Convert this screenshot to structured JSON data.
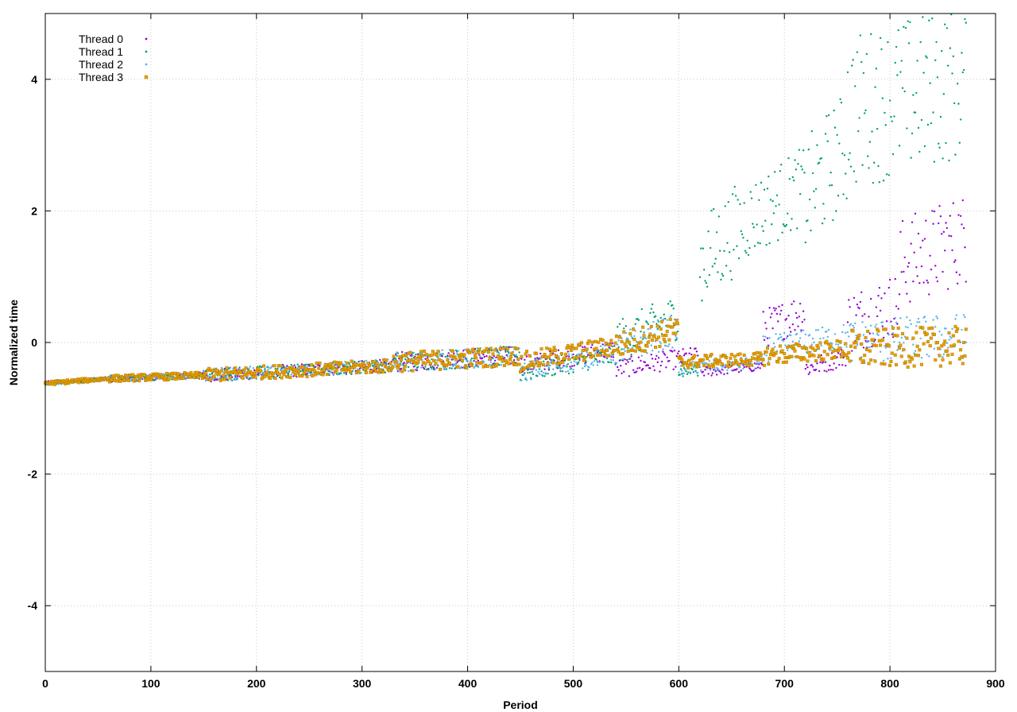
{
  "chart_data": {
    "type": "scatter",
    "title": "",
    "xlabel": "Period",
    "ylabel": "Normalized time",
    "xlim": [
      0,
      900
    ],
    "ylim": [
      -5,
      5
    ],
    "xticks": [
      0,
      100,
      200,
      300,
      400,
      500,
      600,
      700,
      800,
      900
    ],
    "yticks": [
      -4,
      -2,
      0,
      2,
      4
    ],
    "grid": true,
    "legend_position": "top-left",
    "n_points": 873,
    "series": [
      {
        "name": "Thread 0",
        "color": "#9400d3",
        "marker": "dot",
        "segments": [
          {
            "x": [
              0,
              60
            ],
            "y": [
              -0.62,
              -0.55
            ],
            "spread": 0.03
          },
          {
            "x": [
              60,
              150
            ],
            "y": [
              -0.55,
              -0.5
            ],
            "spread": 0.05
          },
          {
            "x": [
              150,
              330
            ],
            "y": [
              -0.5,
              -0.35
            ],
            "spread": 0.1
          },
          {
            "x": [
              330,
              450
            ],
            "y": [
              -0.3,
              -0.2
            ],
            "spread": 0.15
          },
          {
            "x": [
              450,
              540
            ],
            "y": [
              -0.35,
              -0.1
            ],
            "spread": 0.15
          },
          {
            "x": [
              540,
              620
            ],
            "y": [
              -0.4,
              -0.2
            ],
            "spread": 0.15
          },
          {
            "x": [
              620,
              680
            ],
            "y": [
              -0.45,
              -0.35
            ],
            "spread": 0.08
          },
          {
            "x": [
              680,
              720
            ],
            "y": [
              0.2,
              0.5
            ],
            "spread": 0.3
          },
          {
            "x": [
              720,
              760
            ],
            "y": [
              -0.4,
              -0.2
            ],
            "spread": 0.15
          },
          {
            "x": [
              760,
              810
            ],
            "y": [
              0.3,
              0.6
            ],
            "spread": 0.5
          },
          {
            "x": [
              810,
              873
            ],
            "y": [
              1.2,
              1.6
            ],
            "spread": 0.7
          }
        ]
      },
      {
        "name": "Thread 1",
        "color": "#009e73",
        "marker": "dot",
        "segments": [
          {
            "x": [
              0,
              60
            ],
            "y": [
              -0.62,
              -0.55
            ],
            "spread": 0.03
          },
          {
            "x": [
              60,
              150
            ],
            "y": [
              -0.55,
              -0.5
            ],
            "spread": 0.05
          },
          {
            "x": [
              150,
              330
            ],
            "y": [
              -0.5,
              -0.35
            ],
            "spread": 0.1
          },
          {
            "x": [
              330,
              450
            ],
            "y": [
              -0.3,
              -0.2
            ],
            "spread": 0.15
          },
          {
            "x": [
              450,
              540
            ],
            "y": [
              -0.45,
              -0.2
            ],
            "spread": 0.15
          },
          {
            "x": [
              540,
              600
            ],
            "y": [
              0.0,
              0.4
            ],
            "spread": 0.35
          },
          {
            "x": [
              600,
              620
            ],
            "y": [
              -0.45,
              -0.4
            ],
            "spread": 0.1
          },
          {
            "x": [
              620,
              660
            ],
            "y": [
              1.2,
              1.8
            ],
            "spread": 0.7
          },
          {
            "x": [
              660,
              720
            ],
            "y": [
              1.8,
              2.4
            ],
            "spread": 0.6
          },
          {
            "x": [
              720,
              760
            ],
            "y": [
              2.2,
              3.0
            ],
            "spread": 0.9
          },
          {
            "x": [
              760,
              873
            ],
            "y": [
              3.5,
              4.0
            ],
            "spread": 1.2
          }
        ]
      },
      {
        "name": "Thread 2",
        "color": "#56b4e9",
        "marker": "dot",
        "segments": [
          {
            "x": [
              0,
              60
            ],
            "y": [
              -0.62,
              -0.55
            ],
            "spread": 0.03
          },
          {
            "x": [
              60,
              150
            ],
            "y": [
              -0.55,
              -0.5
            ],
            "spread": 0.05
          },
          {
            "x": [
              150,
              330
            ],
            "y": [
              -0.5,
              -0.35
            ],
            "spread": 0.1
          },
          {
            "x": [
              330,
              450
            ],
            "y": [
              -0.3,
              -0.2
            ],
            "spread": 0.15
          },
          {
            "x": [
              450,
              540
            ],
            "y": [
              -0.45,
              -0.15
            ],
            "spread": 0.15
          },
          {
            "x": [
              540,
              600
            ],
            "y": [
              -0.1,
              0.2
            ],
            "spread": 0.25
          },
          {
            "x": [
              600,
              680
            ],
            "y": [
              -0.4,
              -0.3
            ],
            "spread": 0.1
          },
          {
            "x": [
              680,
              760
            ],
            "y": [
              -0.1,
              0.1
            ],
            "spread": 0.2
          },
          {
            "x": [
              760,
              873
            ],
            "y": [
              0.0,
              0.1
            ],
            "spread": 0.35
          }
        ]
      },
      {
        "name": "Thread 3",
        "color": "#e69f00",
        "marker": "square",
        "segments": [
          {
            "x": [
              0,
              60
            ],
            "y": [
              -0.62,
              -0.55
            ],
            "spread": 0.03
          },
          {
            "x": [
              60,
              150
            ],
            "y": [
              -0.55,
              -0.5
            ],
            "spread": 0.05
          },
          {
            "x": [
              150,
              330
            ],
            "y": [
              -0.5,
              -0.35
            ],
            "spread": 0.1
          },
          {
            "x": [
              330,
              450
            ],
            "y": [
              -0.3,
              -0.2
            ],
            "spread": 0.15
          },
          {
            "x": [
              450,
              540
            ],
            "y": [
              -0.3,
              -0.05
            ],
            "spread": 0.15
          },
          {
            "x": [
              540,
              600
            ],
            "y": [
              -0.05,
              0.2
            ],
            "spread": 0.2
          },
          {
            "x": [
              600,
              680
            ],
            "y": [
              -0.3,
              -0.25
            ],
            "spread": 0.1
          },
          {
            "x": [
              680,
              760
            ],
            "y": [
              -0.2,
              -0.1
            ],
            "spread": 0.15
          },
          {
            "x": [
              760,
              873
            ],
            "y": [
              -0.1,
              -0.05
            ],
            "spread": 0.3
          }
        ]
      }
    ]
  }
}
